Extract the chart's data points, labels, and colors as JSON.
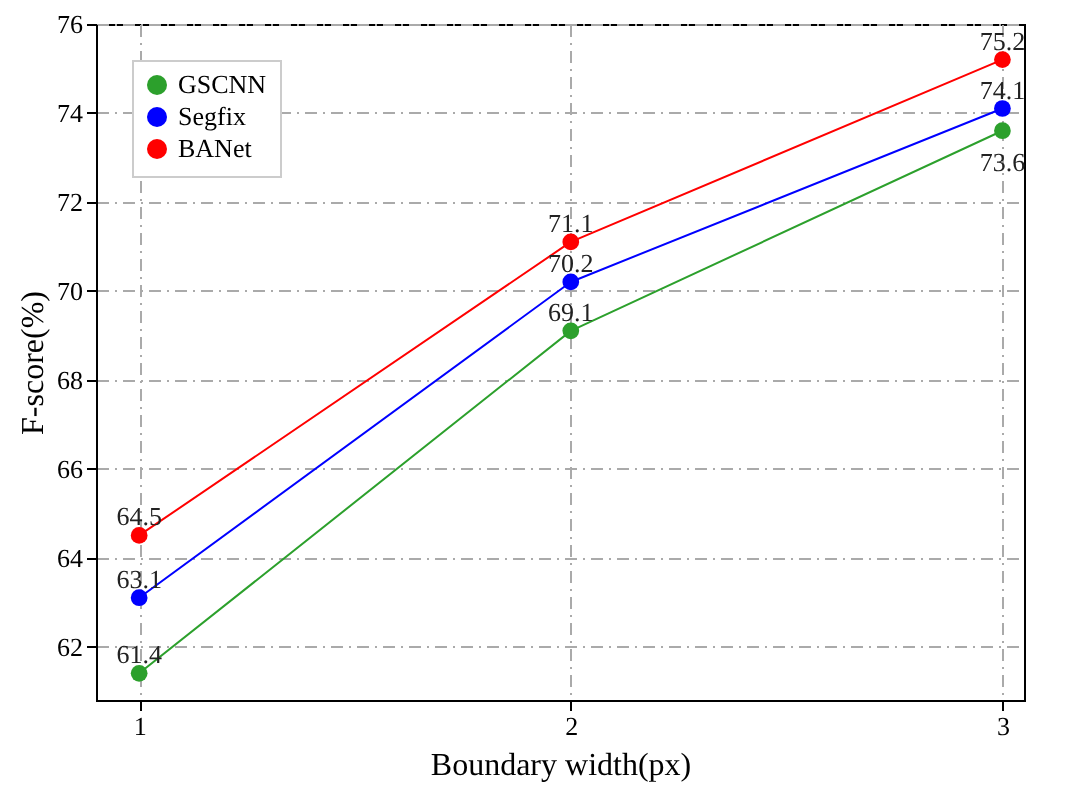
{
  "chart_data": {
    "type": "line",
    "xlabel": "Boundary width(px)",
    "ylabel": "F-score(%)",
    "x": [
      1,
      2,
      3
    ],
    "series": [
      {
        "name": "GSCNN",
        "color": "#2ca02c",
        "values": [
          61.4,
          69.1,
          73.6
        ]
      },
      {
        "name": "Segfix",
        "color": "#0000ff",
        "values": [
          63.1,
          70.2,
          74.1
        ]
      },
      {
        "name": "BANet",
        "color": "#ff0000",
        "values": [
          64.5,
          71.1,
          75.2
        ]
      }
    ],
    "xlim": [
      0.9,
      3.05
    ],
    "xticks": [
      1,
      2,
      3
    ],
    "ylim": [
      60.8,
      76
    ],
    "yticks": [
      62,
      64,
      66,
      68,
      70,
      72,
      74,
      76
    ],
    "grid": true,
    "legend": "top left",
    "marker": "circle",
    "data_labels": true
  }
}
